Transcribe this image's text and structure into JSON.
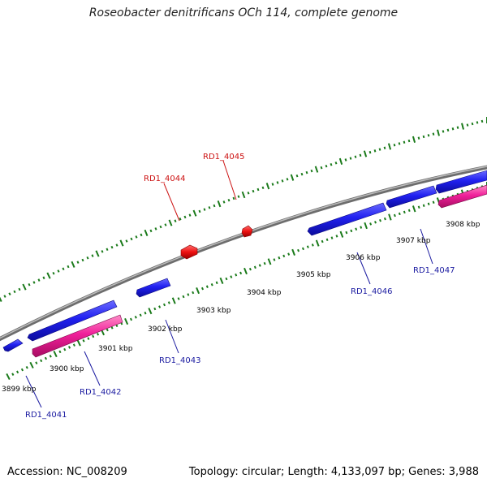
{
  "title": "Roseobacter denitrificans OCh 114, complete genome",
  "footer": {
    "accession": "Accession: NC_008209",
    "topology": "Topology: circular; Length: 4,133,097 bp; Genes: 3,988"
  },
  "colors": {
    "backbone": "#8a8a8a",
    "plus_strand_gene": "#1515e0",
    "minus_strand_gene": "#e8188e",
    "highlight_gene": "#ee1111",
    "tick": "#1a7a1a",
    "label_plus": "#1a1aa0",
    "label_highlight": "#cc1111"
  },
  "kbp_labels": [
    {
      "text": "3899 kbp"
    },
    {
      "text": "3900 kbp"
    },
    {
      "text": "3901 kbp"
    },
    {
      "text": "3902 kbp"
    },
    {
      "text": "3903 kbp"
    },
    {
      "text": "3904 kbp"
    },
    {
      "text": "3905 kbp"
    },
    {
      "text": "3906 kbp"
    },
    {
      "text": "3907 kbp"
    },
    {
      "text": "3908 kbp"
    }
  ],
  "gene_labels": [
    {
      "text": "RD1_4041",
      "color": "blue"
    },
    {
      "text": "RD1_4042",
      "color": "blue"
    },
    {
      "text": "RD1_4043",
      "color": "blue"
    },
    {
      "text": "RD1_4044",
      "color": "red"
    },
    {
      "text": "RD1_4045",
      "color": "red"
    },
    {
      "text": "RD1_4046",
      "color": "blue"
    },
    {
      "text": "RD1_4047",
      "color": "blue"
    }
  ]
}
